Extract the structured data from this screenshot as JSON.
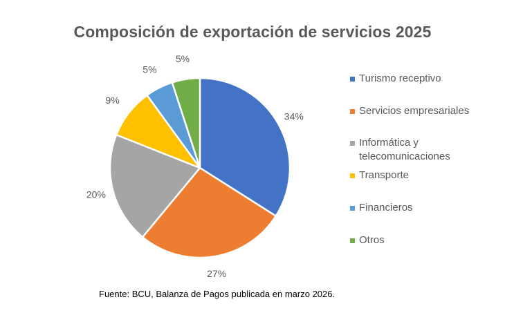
{
  "chart_data": {
    "type": "pie",
    "title": "Composición de exportación de servicios 2025",
    "categories": [
      "Turismo receptivo",
      "Servicios empresariales",
      "Informática y telecomunicaciones",
      "Transporte",
      "Financieros",
      "Otros"
    ],
    "legend_lines": [
      [
        "Turismo receptivo"
      ],
      [
        "Servicios empresariales"
      ],
      [
        "Informática y",
        "telecomunicaciones"
      ],
      [
        "Transporte"
      ],
      [
        "Financieros"
      ],
      [
        "Otros"
      ]
    ],
    "values": [
      34,
      27,
      20,
      9,
      5,
      5
    ],
    "data_labels": [
      "34%",
      "27%",
      "20%",
      "9%",
      "5%",
      "5%"
    ],
    "colors": [
      "#4472c4",
      "#ed7d31",
      "#a5a5a5",
      "#ffc000",
      "#5b9bd5",
      "#70ad47"
    ],
    "legend_position": "right",
    "start_angle": "12 o'clock, clockwise"
  },
  "source": "Fuente: BCU, Balanza de Pagos publicada en marzo 2026."
}
